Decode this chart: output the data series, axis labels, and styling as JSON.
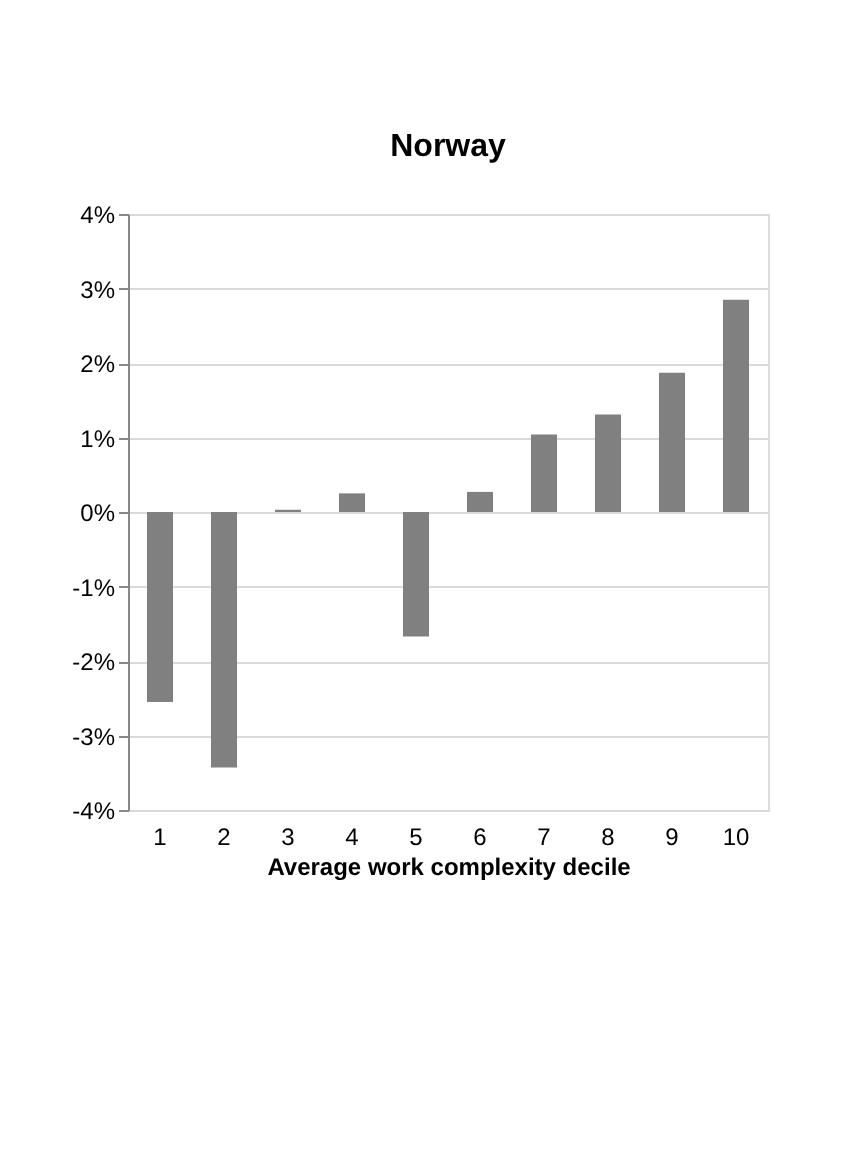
{
  "chart_data": {
    "type": "bar",
    "title": "Norway",
    "xlabel": "Average work complexity decile",
    "categories": [
      "1",
      "2",
      "3",
      "4",
      "5",
      "6",
      "7",
      "8",
      "9",
      "10"
    ],
    "series": [
      {
        "color": "#808080",
        "values": [
          -2.55,
          -3.43,
          0.03,
          0.25,
          -1.67,
          0.27,
          1.04,
          1.31,
          1.87,
          2.85
        ]
      }
    ],
    "ylim": [
      -4,
      4
    ],
    "yticks": [
      {
        "value": -4,
        "label": "-4%"
      },
      {
        "value": -3,
        "label": "-3%"
      },
      {
        "value": -2,
        "label": "-2%"
      },
      {
        "value": -1,
        "label": "-1%"
      },
      {
        "value": 0,
        "label": "0%"
      },
      {
        "value": 1,
        "label": "1%"
      },
      {
        "value": 2,
        "label": "2%"
      },
      {
        "value": 3,
        "label": "3%"
      },
      {
        "value": 4,
        "label": "4%"
      }
    ],
    "grid": "y",
    "legend": false
  }
}
